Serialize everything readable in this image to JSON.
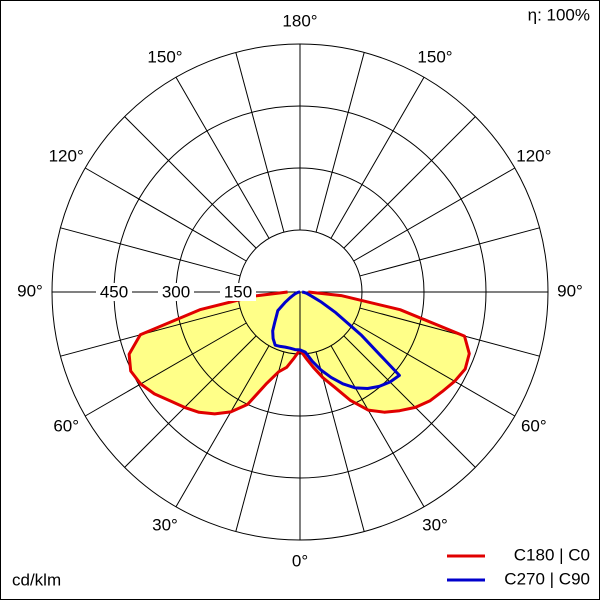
{
  "chart_data": {
    "type": "polar",
    "efficiency": "η: 100%",
    "unit": "cd/klm",
    "rlim": [
      0,
      600
    ],
    "rticks": [
      150,
      300,
      450
    ],
    "angle_ticks": [
      {
        "value": 0,
        "label": "0°"
      },
      {
        "value": 30,
        "label": "30°"
      },
      {
        "value": 60,
        "label": "60°"
      },
      {
        "value": 90,
        "label": "90°"
      },
      {
        "value": 120,
        "label": "120°"
      },
      {
        "value": 150,
        "label": "150°"
      },
      {
        "value": 180,
        "label": "180°"
      }
    ],
    "x": [
      -90,
      -85,
      -80,
      -75,
      -70,
      -65,
      -60,
      -55,
      -50,
      -45,
      -40,
      -35,
      -30,
      -25,
      -20,
      -15,
      -10,
      -5,
      0,
      5,
      10,
      15,
      20,
      25,
      30,
      35,
      40,
      45,
      50,
      55,
      60,
      65,
      70,
      75,
      80,
      85,
      90
    ],
    "series": [
      {
        "name": "C180 | C0",
        "color": "#e00000",
        "fill": "#ffff88",
        "values": [
          30,
          110,
          246,
          400,
          440,
          452,
          445,
          430,
          410,
          395,
          380,
          360,
          335,
          300,
          235,
          200,
          185,
          160,
          140,
          160,
          185,
          215,
          245,
          290,
          330,
          355,
          375,
          395,
          410,
          420,
          432,
          441,
          436,
          412,
          246,
          100,
          20
        ]
      },
      {
        "name": "C270 | C90",
        "color": "#0000cc",
        "values": [
          0,
          3,
          5,
          8,
          12,
          18,
          28,
          45,
          70,
          80,
          95,
          115,
          130,
          142,
          140,
          138,
          138,
          140,
          140,
          146,
          170,
          195,
          220,
          245,
          268,
          285,
          298,
          308,
          314,
          180,
          100,
          55,
          30,
          20,
          15,
          10,
          5
        ]
      }
    ]
  }
}
